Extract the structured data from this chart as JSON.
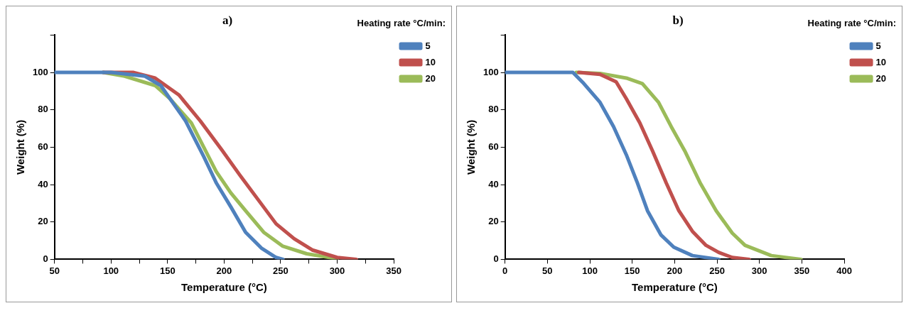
{
  "chart_data": [
    {
      "type": "line",
      "title": "a)",
      "xlabel": "Temperature (°C)",
      "ylabel": "Weight (%)",
      "legend_title": "Heating rate °C/min:",
      "legend": "top right",
      "grid": false,
      "marker": "none",
      "line_style": "solid",
      "xlim": [
        50,
        350
      ],
      "xticks": [
        50,
        {
          "value": 75,
          "label": null
        },
        100,
        {
          "value": 125,
          "label": null
        },
        150,
        {
          "value": 175,
          "label": null
        },
        200,
        {
          "value": 225,
          "label": null
        },
        250,
        {
          "value": 275,
          "label": null
        },
        300,
        {
          "value": 325,
          "label": null
        },
        350
      ],
      "ylim": [
        0,
        120
      ],
      "yticks": [
        0,
        20,
        40,
        60,
        80,
        100,
        {
          "value": 120,
          "label": null
        }
      ],
      "series": [
        {
          "name": "5",
          "color": "#4f81bd",
          "x": [
            50,
            100,
            130,
            144,
            166,
            182,
            193,
            206,
            219,
            233,
            246,
            252
          ],
          "values": [
            100,
            100,
            98,
            93,
            74,
            55,
            41,
            28,
            14.5,
            6,
            1,
            0
          ]
        },
        {
          "name": "10",
          "color": "#c0504d",
          "x": [
            93,
            120,
            139,
            160,
            179,
            198,
            214,
            230,
            246,
            262,
            278,
            300,
            317
          ],
          "values": [
            100,
            100,
            97,
            88,
            74,
            58.5,
            45,
            32,
            19,
            11,
            5,
            1,
            0
          ]
        },
        {
          "name": "20",
          "color": "#9bbb59",
          "x": [
            93,
            112,
            139,
            152,
            171,
            193,
            206,
            219,
            235,
            252,
            273,
            300
          ],
          "values": [
            100,
            98,
            93,
            86,
            73,
            47,
            35.5,
            26,
            14.5,
            7,
            3,
            0.3
          ]
        }
      ]
    },
    {
      "type": "line",
      "title": "b)",
      "xlabel": "Temperature (°C)",
      "ylabel": "Weight (%)",
      "legend_title": "Heating rate °C/min:",
      "legend": "top right",
      "grid": false,
      "marker": "none",
      "line_style": "solid",
      "xlim": [
        0,
        400
      ],
      "xticks": [
        0,
        50,
        100,
        150,
        200,
        250,
        300,
        350,
        400
      ],
      "ylim": [
        0,
        120
      ],
      "yticks": [
        0,
        20,
        40,
        60,
        80,
        100,
        {
          "value": 120,
          "label": null
        }
      ],
      "series": [
        {
          "name": "5",
          "color": "#4f81bd",
          "x": [
            0,
            80,
            93,
            112,
            128,
            143,
            156,
            168,
            184,
            199,
            221,
            252
          ],
          "values": [
            100,
            100,
            94,
            84,
            71,
            56,
            41,
            26,
            13,
            6.5,
            2,
            0
          ]
        },
        {
          "name": "10",
          "color": "#c0504d",
          "x": [
            87,
            112,
            131,
            143,
            159,
            174,
            190,
            205,
            221,
            237,
            252,
            268,
            288
          ],
          "values": [
            100,
            99,
            95,
            86,
            73,
            58,
            41,
            26,
            15,
            7.5,
            3.7,
            1,
            0
          ]
        },
        {
          "name": "20",
          "color": "#9bbb59",
          "x": [
            84,
            112,
            143,
            162,
            181,
            196,
            212,
            230,
            249,
            268,
            283,
            314,
            349
          ],
          "values": [
            100,
            99.5,
            97,
            94,
            84,
            71,
            58,
            41,
            26,
            14,
            7.5,
            2,
            0
          ]
        }
      ]
    }
  ]
}
